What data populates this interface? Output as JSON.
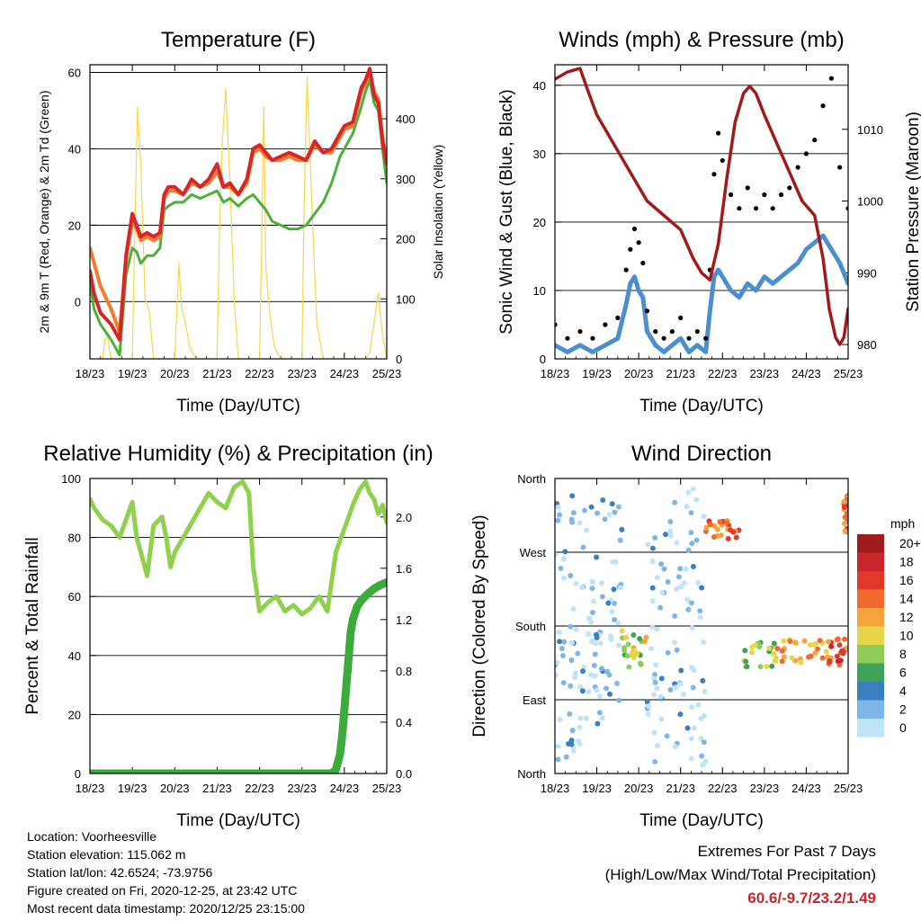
{
  "x_ticks": [
    "18/23",
    "19/23",
    "20/23",
    "21/23",
    "22/23",
    "23/23",
    "24/23",
    "25/23"
  ],
  "xlabel": "Time (Day/UTC)",
  "colors": {
    "temp": "#d62728",
    "temp9m": "#f07c2e",
    "dew": "#4caf3a",
    "solar": "#f7d64a",
    "wind": "#4a90d0",
    "gust": "#000000",
    "pressure": "#a01c1c",
    "rh": "#8fd14f",
    "precip": "#3cab3c"
  },
  "chart_data": [
    {
      "id": "temperature",
      "type": "line",
      "title": "Temperature (F)",
      "xlabel": "Time (Day/UTC)",
      "ylabel": "2m & 9m T (Red, Orange) & 2m Td (Green)",
      "y2label": "Solar Insolation (Yellow)",
      "xlim": [
        0,
        7
      ],
      "ylim": [
        -15,
        62
      ],
      "y_ticks": [
        0,
        20,
        40,
        60
      ],
      "y2lim": [
        0,
        490
      ],
      "y2_ticks": [
        0,
        100,
        200,
        300,
        400
      ],
      "grid": true,
      "series": [
        {
          "key": "temp",
          "axis": "left",
          "x": [
            0,
            0.1,
            0.25,
            0.5,
            0.7,
            0.85,
            1.0,
            1.1,
            1.2,
            1.35,
            1.5,
            1.65,
            1.75,
            1.85,
            2.0,
            2.2,
            2.4,
            2.6,
            2.8,
            3.0,
            3.15,
            3.3,
            3.5,
            3.7,
            3.85,
            4.0,
            4.15,
            4.3,
            4.5,
            4.7,
            4.9,
            5.1,
            5.3,
            5.5,
            5.7,
            5.9,
            6.0,
            6.2,
            6.4,
            6.5,
            6.6,
            6.7,
            6.8,
            6.9,
            7.0
          ],
          "y": [
            8,
            2,
            -3,
            -6,
            -10,
            12,
            23,
            20,
            17,
            18,
            17,
            18,
            28,
            30,
            30,
            28,
            32,
            30,
            32,
            36,
            30,
            31,
            28,
            32,
            40,
            41,
            39,
            37,
            38,
            39,
            38,
            37,
            42,
            39,
            40,
            44,
            46,
            47,
            56,
            58,
            61,
            54,
            52,
            42,
            36
          ]
        },
        {
          "key": "temp9m",
          "axis": "left",
          "x": [
            0,
            0.1,
            0.25,
            0.5,
            0.7,
            0.85,
            1.0,
            1.1,
            1.2,
            1.35,
            1.5,
            1.65,
            1.75,
            1.85,
            2.0,
            2.2,
            2.4,
            2.6,
            2.8,
            3.0,
            3.15,
            3.3,
            3.5,
            3.7,
            3.85,
            4.0,
            4.15,
            4.3,
            4.5,
            4.7,
            4.9,
            5.1,
            5.3,
            5.5,
            5.7,
            5.9,
            6.0,
            6.2,
            6.4,
            6.5,
            6.6,
            6.7,
            6.8,
            6.9,
            7.0
          ],
          "y": [
            14,
            10,
            4,
            -2,
            -8,
            11,
            21,
            19,
            16,
            17,
            16,
            17,
            27,
            29,
            29,
            28,
            31,
            30,
            31,
            34,
            30,
            30,
            28,
            31,
            39,
            40,
            38,
            37,
            37,
            38,
            37,
            37,
            41,
            39,
            39,
            43,
            45,
            46,
            55,
            57,
            60,
            55,
            53,
            43,
            37
          ]
        },
        {
          "key": "dew",
          "axis": "left",
          "x": [
            0,
            0.1,
            0.25,
            0.5,
            0.7,
            0.85,
            1.0,
            1.1,
            1.2,
            1.35,
            1.5,
            1.65,
            1.75,
            1.85,
            2.0,
            2.2,
            2.4,
            2.6,
            2.8,
            3.0,
            3.15,
            3.3,
            3.5,
            3.7,
            3.85,
            4.0,
            4.15,
            4.3,
            4.5,
            4.7,
            4.9,
            5.1,
            5.3,
            5.5,
            5.7,
            5.9,
            6.0,
            6.2,
            6.4,
            6.5,
            6.6,
            6.7,
            6.8,
            6.9,
            7.0
          ],
          "y": [
            5,
            -2,
            -6,
            -10,
            -14,
            7,
            14,
            13,
            10,
            12,
            12,
            14,
            24,
            25,
            26,
            26,
            28,
            27,
            28,
            29,
            26,
            27,
            25,
            27,
            28,
            26,
            24,
            21,
            20,
            19,
            19,
            20,
            23,
            26,
            31,
            38,
            40,
            44,
            51,
            55,
            58,
            52,
            50,
            40,
            31
          ]
        },
        {
          "key": "solar",
          "axis": "right",
          "x": [
            0.3,
            0.35,
            0.4,
            0.45,
            0.5,
            1.0,
            1.05,
            1.12,
            1.2,
            1.3,
            1.4,
            1.5,
            2.0,
            2.05,
            2.1,
            2.15,
            2.25,
            2.35,
            2.5,
            3.0,
            3.05,
            3.12,
            3.2,
            3.3,
            3.4,
            3.5,
            4.0,
            4.05,
            4.1,
            4.15,
            4.25,
            4.35,
            4.5,
            5.0,
            5.05,
            5.12,
            5.22,
            5.35,
            5.45,
            5.5,
            6.0,
            6.5,
            6.6,
            6.7,
            6.8,
            6.9,
            7.0
          ],
          "y": [
            0,
            30,
            45,
            20,
            0,
            0,
            180,
            420,
            320,
            100,
            80,
            0,
            0,
            80,
            160,
            90,
            60,
            20,
            0,
            0,
            200,
            360,
            450,
            300,
            100,
            0,
            0,
            190,
            420,
            150,
            70,
            20,
            0,
            0,
            250,
            470,
            280,
            60,
            20,
            0,
            0,
            0,
            10,
            60,
            110,
            40,
            0
          ]
        }
      ]
    },
    {
      "id": "winds",
      "type": "scatter",
      "title": "Winds (mph) & Pressure (mb)",
      "xlabel": "Time (Day/UTC)",
      "ylabel": "Sonic Wind & Gust (Blue, Black)",
      "y2label": "Station Pressure (Maroon)",
      "xlim": [
        0,
        7
      ],
      "ylim": [
        0,
        43
      ],
      "y_ticks": [
        0,
        10,
        20,
        30,
        40
      ],
      "y2lim": [
        978,
        1019
      ],
      "y2_ticks": [
        980,
        990,
        1000,
        1010
      ],
      "grid": true,
      "series": [
        {
          "key": "wind",
          "axis": "left",
          "x": [
            0,
            0.3,
            0.6,
            0.9,
            1.2,
            1.5,
            1.7,
            1.8,
            1.9,
            2.0,
            2.1,
            2.2,
            2.4,
            2.6,
            2.8,
            3.0,
            3.2,
            3.4,
            3.6,
            3.7,
            3.8,
            3.9,
            4.0,
            4.2,
            4.4,
            4.6,
            4.8,
            5.0,
            5.2,
            5.4,
            5.6,
            5.8,
            6.0,
            6.2,
            6.4,
            6.6,
            6.8,
            7.0
          ],
          "y": [
            2,
            1,
            2,
            1,
            2,
            3,
            8,
            11,
            12,
            10,
            9,
            4,
            2,
            1,
            2,
            3,
            1,
            2,
            1,
            7,
            12,
            13,
            12,
            10,
            9,
            11,
            10,
            12,
            11,
            12,
            13,
            14,
            16,
            17,
            18,
            16,
            14,
            11
          ]
        },
        {
          "key": "gust",
          "axis": "left",
          "x": [
            0,
            0.3,
            0.6,
            0.9,
            1.2,
            1.5,
            1.7,
            1.8,
            1.9,
            2.0,
            2.1,
            2.2,
            2.4,
            2.6,
            2.8,
            3.0,
            3.2,
            3.4,
            3.6,
            3.7,
            3.8,
            3.9,
            4.0,
            4.2,
            4.4,
            4.6,
            4.8,
            5.0,
            5.2,
            5.4,
            5.6,
            5.8,
            6.0,
            6.2,
            6.4,
            6.6,
            6.8,
            7.0
          ],
          "y": [
            5,
            3,
            4,
            3,
            5,
            6,
            13,
            16,
            19,
            17,
            14,
            7,
            4,
            3,
            4,
            6,
            3,
            4,
            3,
            13,
            27,
            33,
            29,
            24,
            22,
            25,
            22,
            24,
            22,
            24,
            25,
            28,
            30,
            32,
            37,
            41,
            28,
            22
          ]
        },
        {
          "key": "pressure",
          "axis": "right",
          "x": [
            0,
            0.3,
            0.6,
            0.75,
            1.0,
            1.4,
            1.8,
            2.2,
            2.6,
            3.0,
            3.3,
            3.5,
            3.7,
            3.9,
            4.1,
            4.3,
            4.5,
            4.65,
            4.8,
            5.0,
            5.3,
            5.6,
            5.9,
            6.2,
            6.4,
            6.55,
            6.7,
            6.8,
            6.9,
            7.0
          ],
          "y": [
            1017,
            1018,
            1018.5,
            1016,
            1012,
            1008,
            1004,
            1000,
            998,
            996,
            992,
            990,
            989,
            994,
            1003,
            1011,
            1015,
            1016,
            1015,
            1012,
            1008,
            1004,
            1000,
            998,
            992,
            985,
            981,
            980,
            981,
            985
          ]
        }
      ]
    },
    {
      "id": "humidity",
      "type": "line",
      "title": "Relative Humidity (%) & Precipitation (in)",
      "xlabel": "Time (Day/UTC)",
      "ylabel": "Percent & Total Rainfall",
      "xlim": [
        0,
        7
      ],
      "ylim": [
        0,
        100
      ],
      "y_ticks": [
        0,
        20,
        40,
        60,
        80,
        100
      ],
      "y2lim": [
        0,
        2.3
      ],
      "y2_ticks": [
        "0.0",
        "0.4",
        "0.8",
        "1.2",
        "1.6",
        "2.0"
      ],
      "grid": true,
      "series": [
        {
          "key": "rh",
          "axis": "left",
          "x": [
            0,
            0.1,
            0.3,
            0.5,
            0.7,
            0.9,
            1.0,
            1.1,
            1.2,
            1.35,
            1.5,
            1.7,
            1.8,
            1.9,
            2.0,
            2.2,
            2.4,
            2.6,
            2.8,
            3.0,
            3.2,
            3.4,
            3.6,
            3.75,
            3.85,
            4.0,
            4.2,
            4.4,
            4.6,
            4.8,
            5.0,
            5.2,
            5.4,
            5.6,
            5.8,
            6.0,
            6.2,
            6.35,
            6.5,
            6.6,
            6.7,
            6.8,
            6.9,
            7.0
          ],
          "y": [
            93,
            90,
            86,
            84,
            80,
            88,
            92,
            80,
            75,
            67,
            84,
            87,
            80,
            70,
            75,
            80,
            85,
            90,
            95,
            92,
            90,
            97,
            99,
            95,
            70,
            55,
            58,
            60,
            55,
            57,
            54,
            56,
            60,
            55,
            75,
            83,
            91,
            96,
            99,
            95,
            93,
            88,
            91,
            85
          ]
        },
        {
          "key": "precip",
          "axis": "right",
          "x": [
            0,
            1,
            2,
            3,
            4,
            5,
            5.7,
            5.8,
            5.9,
            5.95,
            6.0,
            6.05,
            6.1,
            6.15,
            6.2,
            6.3,
            6.4,
            6.55,
            6.7,
            6.85,
            7.0
          ],
          "y": [
            0,
            0,
            0,
            0,
            0,
            0,
            0,
            0.03,
            0.15,
            0.3,
            0.5,
            0.7,
            0.9,
            1.1,
            1.2,
            1.3,
            1.35,
            1.4,
            1.44,
            1.47,
            1.49
          ]
        }
      ]
    },
    {
      "id": "direction",
      "type": "scatter",
      "title": "Wind Direction",
      "xlabel": "Time (Day/UTC)",
      "ylabel": "Direction (Colored By Speed)",
      "xlim": [
        0,
        7
      ],
      "y_tick_labels": [
        "North",
        "East",
        "South",
        "West",
        "North"
      ],
      "legend": {
        "title": "mph",
        "labels": [
          "20+",
          "18",
          "16",
          "14",
          "12",
          "10",
          "8",
          "6",
          "4",
          "2",
          "0"
        ],
        "colors": [
          "#a01c1c",
          "#c8262c",
          "#e0392b",
          "#ef6a2c",
          "#f7a33c",
          "#e8d64a",
          "#8fcc5a",
          "#3ea25a",
          "#3a7fc0",
          "#7fb6e8",
          "#bfe3f7"
        ]
      },
      "clusters": [
        {
          "x0": 0.0,
          "x1": 0.9,
          "d0": 10,
          "d1": 350,
          "speed": 1
        },
        {
          "x0": 0.9,
          "x1": 1.6,
          "d0": 60,
          "d1": 340,
          "speed": 2
        },
        {
          "x0": 1.6,
          "x1": 2.2,
          "d0": 130,
          "d1": 175,
          "speed": 9
        },
        {
          "x0": 2.2,
          "x1": 3.6,
          "d0": 10,
          "d1": 350,
          "speed": 1
        },
        {
          "x0": 3.6,
          "x1": 4.4,
          "d0": 285,
          "d1": 310,
          "speed": 14
        },
        {
          "x0": 4.5,
          "x1": 5.3,
          "d0": 130,
          "d1": 160,
          "speed": 8
        },
        {
          "x0": 5.3,
          "x1": 6.5,
          "d0": 135,
          "d1": 165,
          "speed": 12
        },
        {
          "x0": 6.5,
          "x1": 7.0,
          "d0": 130,
          "d1": 165,
          "speed": 15
        },
        {
          "x0": 6.9,
          "x1": 7.0,
          "d0": 290,
          "d1": 340,
          "speed": 14
        }
      ]
    }
  ],
  "info": {
    "location": "Location: Voorheesville",
    "elevation": "Station elevation: 115.062 m",
    "latlon": "Station lat/lon: 42.6524; -73.9756",
    "created": "Figure created on Fri, 2020-12-25, at 23:42 UTC",
    "recent": "Most recent data timestamp: 2020/12/25 23:15:00"
  },
  "extremes": {
    "title": "Extremes For Past 7 Days",
    "subtitle": "(High/Low/Max Wind/Total Precipitation)",
    "values": "60.6/-9.7/23.2/1.49"
  }
}
